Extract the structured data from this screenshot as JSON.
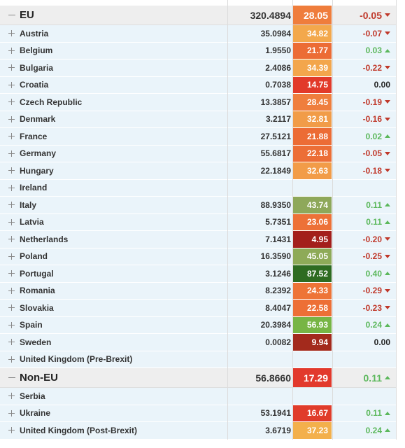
{
  "table": {
    "groups": [
      {
        "label": "EU",
        "value": "320.4894",
        "score": "28.05",
        "color": "#ef7d3c",
        "change": "-0.05",
        "rows": [
          {
            "label": "Austria",
            "value": "35.0984",
            "score": "34.82",
            "color": "#f3a84c",
            "change": "-0.07"
          },
          {
            "label": "Belgium",
            "value": "1.9550",
            "score": "21.77",
            "color": "#ec6c35",
            "change": "0.03"
          },
          {
            "label": "Bulgaria",
            "value": "2.4086",
            "score": "34.39",
            "color": "#f3a64c",
            "change": "-0.22"
          },
          {
            "label": "Croatia",
            "value": "0.7038",
            "score": "14.75",
            "color": "#e23a2a",
            "change": "0.00"
          },
          {
            "label": "Czech Republic",
            "value": "13.3857",
            "score": "28.45",
            "color": "#ef7e3d",
            "change": "-0.19"
          },
          {
            "label": "Denmark",
            "value": "3.2117",
            "score": "32.81",
            "color": "#f19c48",
            "change": "-0.16"
          },
          {
            "label": "France",
            "value": "27.5121",
            "score": "21.88",
            "color": "#ec6c35",
            "change": "0.02"
          },
          {
            "label": "Germany",
            "value": "55.6817",
            "score": "22.18",
            "color": "#ec6e36",
            "change": "-0.05"
          },
          {
            "label": "Hungary",
            "value": "22.1849",
            "score": "32.63",
            "color": "#f29c48",
            "change": "-0.18"
          },
          {
            "label": "Ireland"
          },
          {
            "label": "Italy",
            "value": "88.9350",
            "score": "43.74",
            "color": "#8ea85a",
            "change": "0.11"
          },
          {
            "label": "Latvia",
            "value": "5.7351",
            "score": "23.06",
            "color": "#ed7137",
            "change": "0.11"
          },
          {
            "label": "Netherlands",
            "value": "7.1431",
            "score": "4.95",
            "color": "#a31f1b",
            "change": "-0.20"
          },
          {
            "label": "Poland",
            "value": "16.3590",
            "score": "45.05",
            "color": "#8eaa58",
            "change": "-0.25"
          },
          {
            "label": "Portugal",
            "value": "3.1246",
            "score": "87.52",
            "color": "#2e6b21",
            "change": "0.40"
          },
          {
            "label": "Romania",
            "value": "8.2392",
            "score": "24.33",
            "color": "#ee7437",
            "change": "-0.29"
          },
          {
            "label": "Slovakia",
            "value": "8.4047",
            "score": "22.58",
            "color": "#ed6f36",
            "change": "-0.23"
          },
          {
            "label": "Spain",
            "value": "20.3984",
            "score": "56.93",
            "color": "#77b545",
            "change": "0.24"
          },
          {
            "label": "Sweden",
            "value": "0.0082",
            "score": "9.94",
            "color": "#a32a1c",
            "change": "0.00"
          },
          {
            "label": "United Kingdom (Pre-Brexit)"
          }
        ]
      },
      {
        "label": "Non-EU",
        "value": "56.8660",
        "score": "17.29",
        "color": "#e2392c",
        "change": "0.11",
        "rows": [
          {
            "label": "Serbia"
          },
          {
            "label": "Ukraine",
            "value": "53.1941",
            "score": "16.67",
            "color": "#e03c2a",
            "change": "0.11"
          },
          {
            "label": "United Kingdom (Post-Brexit)",
            "value": "3.6719",
            "score": "37.23",
            "color": "#f3b04c",
            "change": "0.24"
          }
        ]
      }
    ]
  }
}
